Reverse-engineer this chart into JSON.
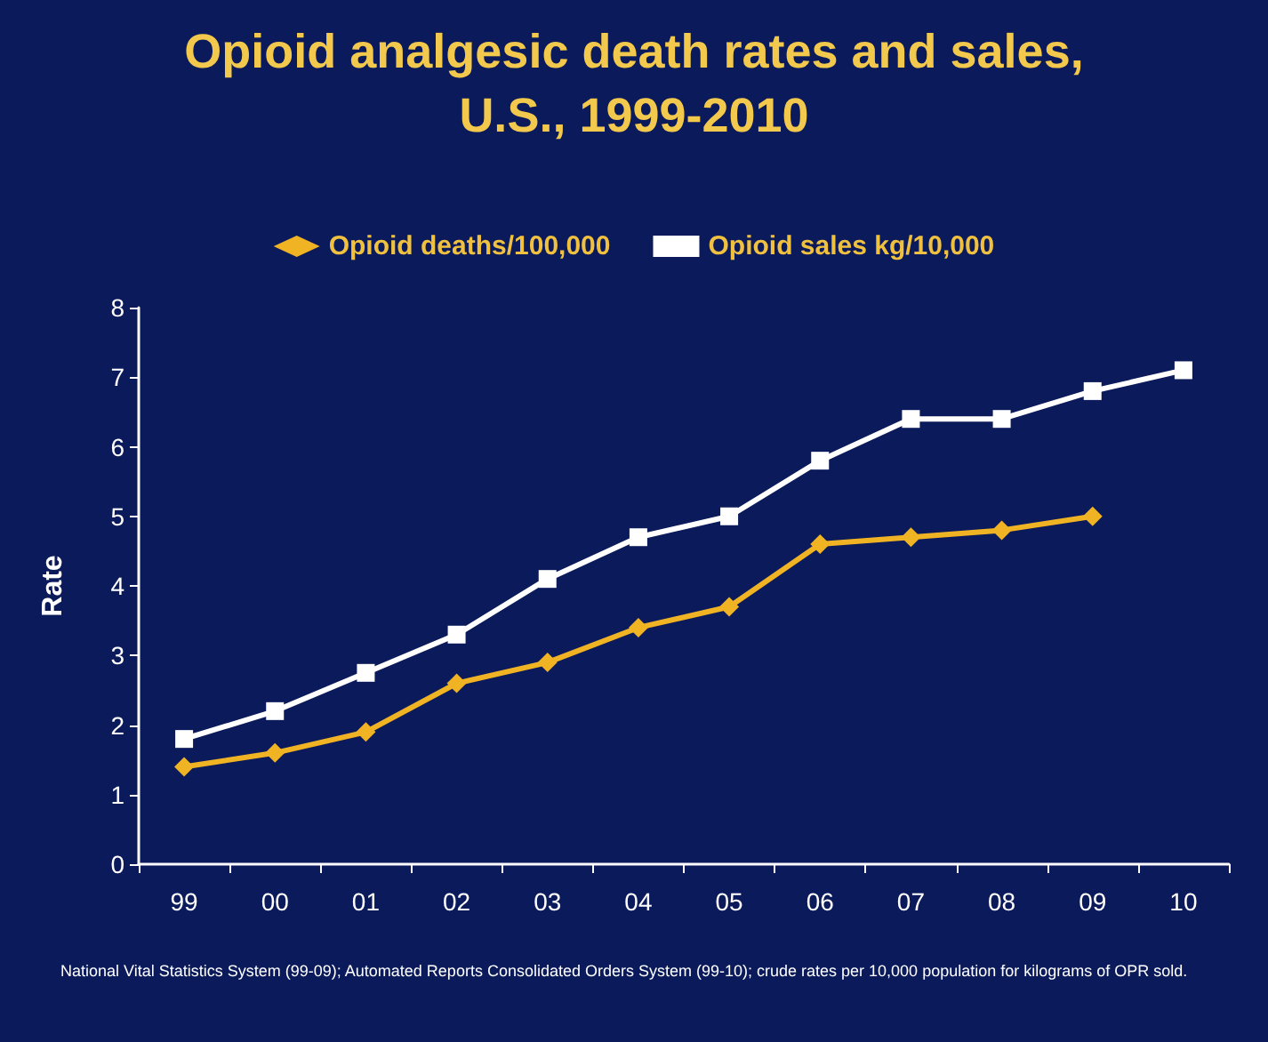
{
  "chart_data": {
    "type": "line",
    "title": "Opioid analgesic death rates and sales,\nU.S., 1999-2010",
    "ylabel": "Rate",
    "categories": [
      "99",
      "00",
      "01",
      "02",
      "03",
      "04",
      "05",
      "06",
      "07",
      "08",
      "09",
      "10"
    ],
    "series": [
      {
        "name": "Opioid deaths/100,000",
        "color": "#f0b323",
        "marker": "diamond",
        "values": [
          1.4,
          1.6,
          1.9,
          2.6,
          2.9,
          3.4,
          3.7,
          4.6,
          4.7,
          4.8,
          5.0,
          null
        ]
      },
      {
        "name": "Opioid sales kg/10,000",
        "color": "#ffffff",
        "marker": "square",
        "values": [
          1.8,
          2.2,
          2.75,
          3.3,
          4.1,
          4.7,
          5.0,
          5.8,
          6.4,
          6.4,
          6.8,
          7.1
        ]
      }
    ],
    "ylim": [
      0,
      8
    ],
    "yticks": [
      0,
      1,
      2,
      3,
      4,
      5,
      6,
      7,
      8
    ],
    "grid": false,
    "legend": "top",
    "line_style": "solid",
    "annotations": [
      "National Vital Statistics System (99-09); Automated Reports Consolidated Orders System (99-10); crude rates per 10,000 population for  kilograms of OPR sold."
    ]
  }
}
